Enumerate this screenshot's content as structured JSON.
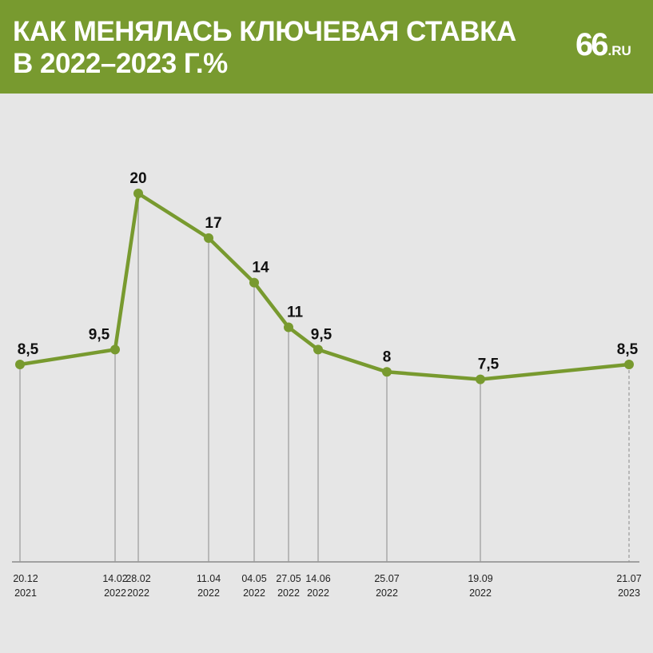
{
  "header": {
    "title_line1": "КАК МЕНЯЛАСЬ КЛЮЧЕВАЯ СТАВКА",
    "title_line2": "В 2022–2023 Г.%",
    "logo_number": "66",
    "logo_domain": ".RU"
  },
  "colors": {
    "brand": "#789a2f",
    "line": "#789a2f",
    "background": "#e6e6e6",
    "guide": "#999999"
  },
  "chart_data": {
    "type": "line",
    "title": "КАК МЕНЯЛАСЬ КЛЮЧЕВАЯ СТАВКА В 2022–2023 Г.%",
    "xlabel": "",
    "ylabel": "",
    "ylim": [
      0,
      20
    ],
    "grid": false,
    "legend": "none",
    "x": [
      "2021-12-20",
      "2022-02-14",
      "2022-02-28",
      "2022-04-11",
      "2022-05-04",
      "2022-05-27",
      "2022-06-14",
      "2022-07-25",
      "2022-09-19",
      "2023-07-21"
    ],
    "tick_labels": [
      {
        "date": "20.12",
        "year": "2021"
      },
      {
        "date": "14.02",
        "year": "2022"
      },
      {
        "date": "28.02",
        "year": "2022"
      },
      {
        "date": "11.04",
        "year": "2022"
      },
      {
        "date": "04.05",
        "year": "2022"
      },
      {
        "date": "27.05",
        "year": "2022"
      },
      {
        "date": "14.06",
        "year": "2022"
      },
      {
        "date": "25.07",
        "year": "2022"
      },
      {
        "date": "19.09",
        "year": "2022"
      },
      {
        "date": "21.07",
        "year": "2023"
      }
    ],
    "values": [
      8.5,
      9.5,
      20,
      17,
      14,
      11,
      9.5,
      8,
      7.5,
      8.5
    ],
    "value_labels": [
      "8,5",
      "9,5",
      "20",
      "17",
      "14",
      "11",
      "9,5",
      "8",
      "7,5",
      "8,5"
    ]
  }
}
